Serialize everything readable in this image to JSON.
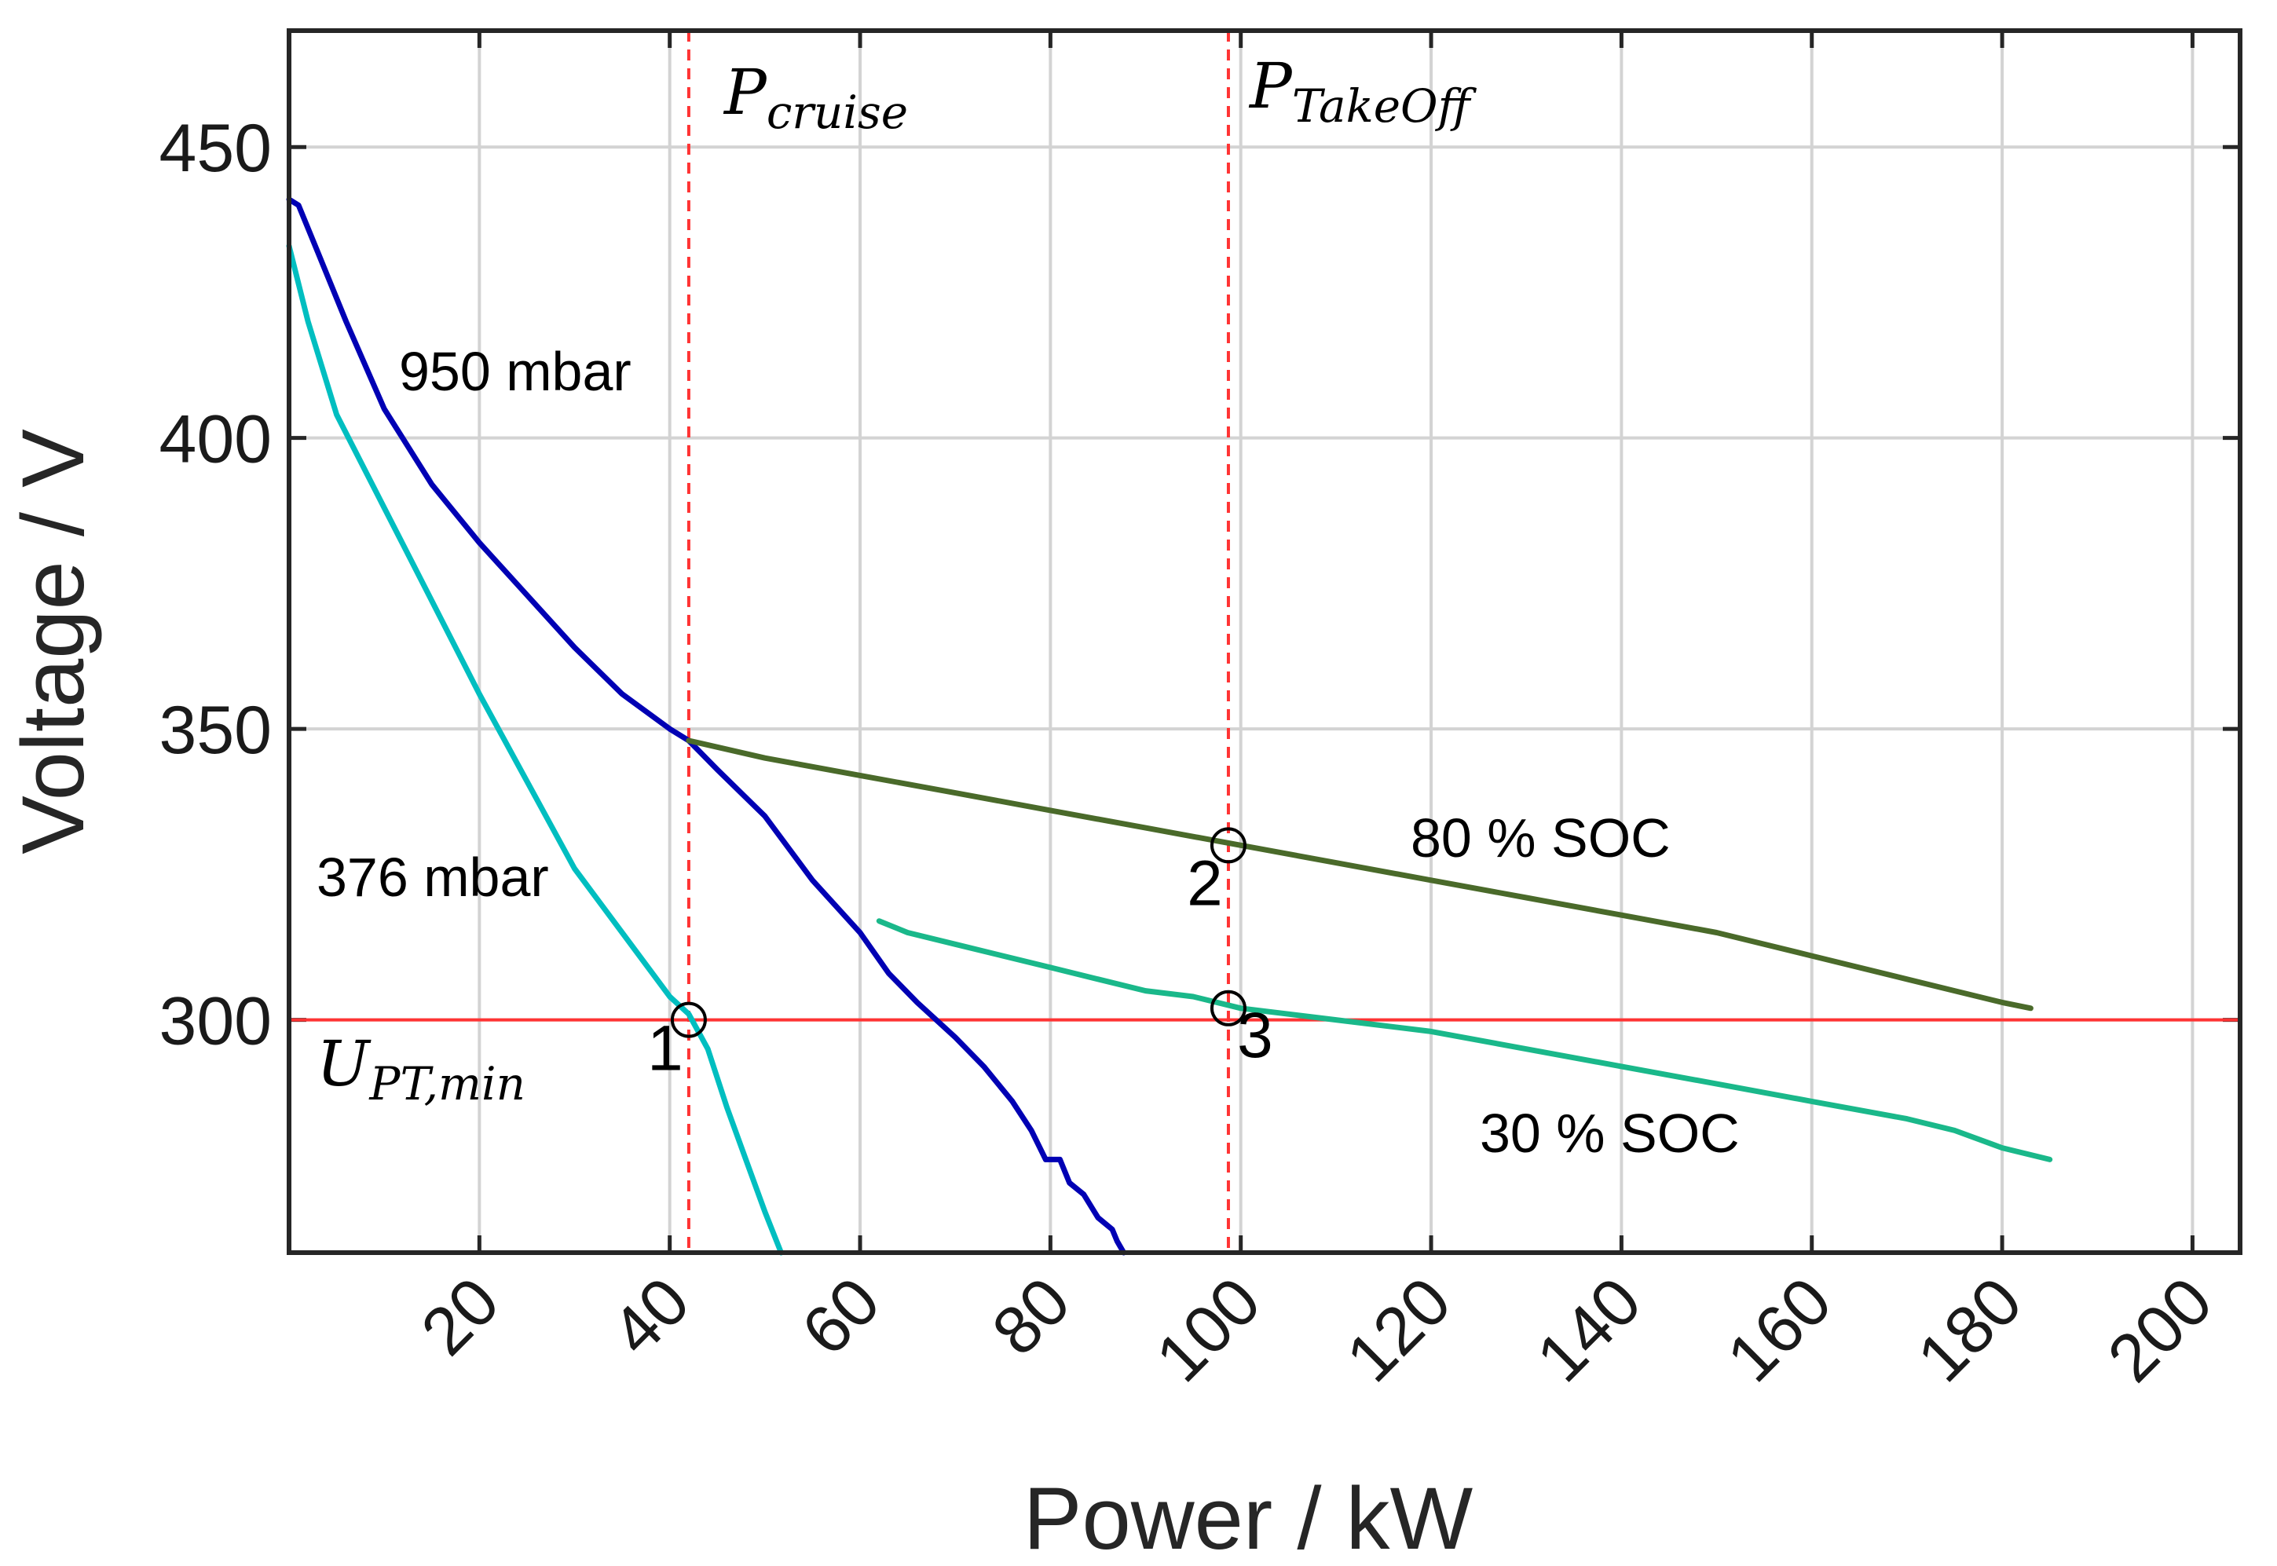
{
  "chart_data": {
    "type": "line",
    "xlabel": "Power / kW",
    "ylabel": "Voltage / V",
    "xlim": [
      0,
      205
    ],
    "ylim": [
      260,
      470
    ],
    "xticks": [
      20,
      40,
      60,
      80,
      100,
      120,
      140,
      160,
      180,
      200
    ],
    "yticks": [
      300,
      350,
      400,
      450
    ],
    "grid": true,
    "series": [
      {
        "name": "950 mbar",
        "color": "#0000b4",
        "x": [
          0,
          1,
          3,
          6,
          10,
          15,
          20,
          25,
          30,
          35,
          40,
          42,
          45,
          50,
          55,
          60,
          63,
          66,
          70,
          73,
          76,
          78,
          79.5,
          81,
          82,
          83.5,
          85,
          86.5,
          87,
          87.7
        ],
        "y": [
          441,
          440,
          432,
          420,
          405,
          392,
          382,
          373,
          364,
          356,
          350,
          348,
          343,
          335,
          324,
          315,
          308,
          303,
          297,
          292,
          286,
          281,
          276,
          276,
          272,
          270,
          266,
          264,
          262,
          260
        ]
      },
      {
        "name": "376 mbar",
        "color": "#00bec0",
        "x": [
          0,
          2,
          5,
          10,
          15,
          20,
          25,
          30,
          35,
          40,
          42,
          44,
          46,
          48,
          50,
          51.7
        ],
        "y": [
          433,
          420,
          404,
          388,
          372,
          356,
          341,
          326,
          315,
          304,
          301,
          295,
          285,
          276,
          267,
          260
        ]
      },
      {
        "name": "80 % SOC",
        "color": "#4a6a2a",
        "x": [
          42,
          50,
          60,
          70,
          80,
          90,
          100,
          110,
          120,
          130,
          140,
          150,
          160,
          170,
          175,
          180,
          183
        ],
        "y": [
          348,
          345,
          342,
          339,
          336,
          333,
          330,
          327,
          324,
          321,
          318,
          315,
          311,
          307,
          305,
          303,
          302
        ]
      },
      {
        "name": "30 % SOC",
        "color": "#1ab88a",
        "x": [
          62,
          65,
          70,
          75,
          80,
          85,
          90,
          95,
          100,
          105,
          110,
          120,
          130,
          140,
          150,
          160,
          170,
          175,
          180,
          185
        ],
        "y": [
          317,
          315,
          313,
          311,
          309,
          307,
          305,
          304,
          302,
          301,
          300,
          298,
          295,
          292,
          289,
          286,
          283,
          281,
          278,
          276
        ]
      }
    ],
    "reference_lines": {
      "horizontal": {
        "y": 300,
        "color": "#ff3333",
        "label_base": "U",
        "label_sub": "PT,min"
      },
      "vertical": [
        {
          "x": 42,
          "color": "#ff3333",
          "label_base": "P",
          "label_sub": "cruise"
        },
        {
          "x": 98.7,
          "color": "#ff3333",
          "label_base": "P",
          "label_sub": "TakeOff"
        }
      ]
    },
    "points": [
      {
        "label": "1",
        "x": 42,
        "y": 300
      },
      {
        "label": "2",
        "x": 98.7,
        "y": 330
      },
      {
        "label": "3",
        "x": 98.7,
        "y": 302
      }
    ],
    "annotations": [
      "950 mbar",
      "376 mbar",
      "80 % SOC",
      "30 % SOC"
    ]
  }
}
